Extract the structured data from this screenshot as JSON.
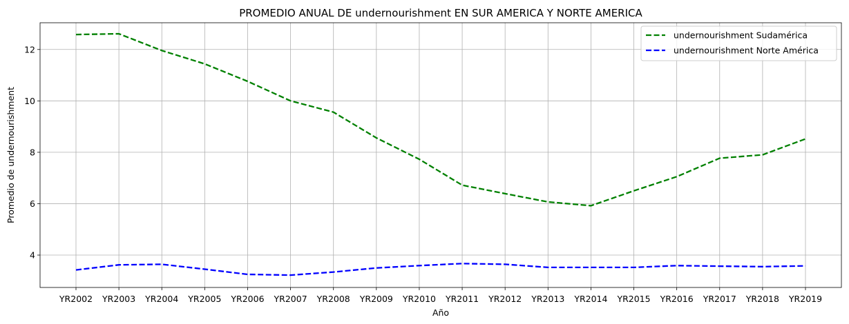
{
  "chart_data": {
    "type": "line",
    "title": "PROMEDIO ANUAL DE undernourishment EN SUR AMERICA Y NORTE AMERICA",
    "xlabel": "Año",
    "ylabel": "Promedio de undernourishment",
    "categories": [
      "YR2002",
      "YR2003",
      "YR2004",
      "YR2005",
      "YR2006",
      "YR2007",
      "YR2008",
      "YR2009",
      "YR2010",
      "YR2011",
      "YR2012",
      "YR2013",
      "YR2014",
      "YR2015",
      "YR2016",
      "YR2017",
      "YR2018",
      "YR2019"
    ],
    "ylim": [
      2.74,
      13.04
    ],
    "yticks": [
      4,
      6,
      8,
      10,
      12
    ],
    "grid": true,
    "legend_position": "top-right",
    "series": [
      {
        "name": "undernourishment Sudamérica",
        "color": "#008000",
        "line_style": "dashed",
        "values": [
          12.58,
          12.61,
          11.96,
          11.44,
          10.76,
          10.0,
          9.56,
          8.56,
          7.73,
          6.72,
          6.39,
          6.07,
          5.92,
          6.5,
          7.05,
          7.77,
          7.9,
          8.52
        ]
      },
      {
        "name": "undernourishment Norte América",
        "color": "#0000ff",
        "line_style": "dashed",
        "values": [
          3.42,
          3.62,
          3.64,
          3.45,
          3.25,
          3.22,
          3.34,
          3.5,
          3.59,
          3.67,
          3.64,
          3.52,
          3.52,
          3.52,
          3.59,
          3.57,
          3.55,
          3.58
        ]
      }
    ]
  }
}
